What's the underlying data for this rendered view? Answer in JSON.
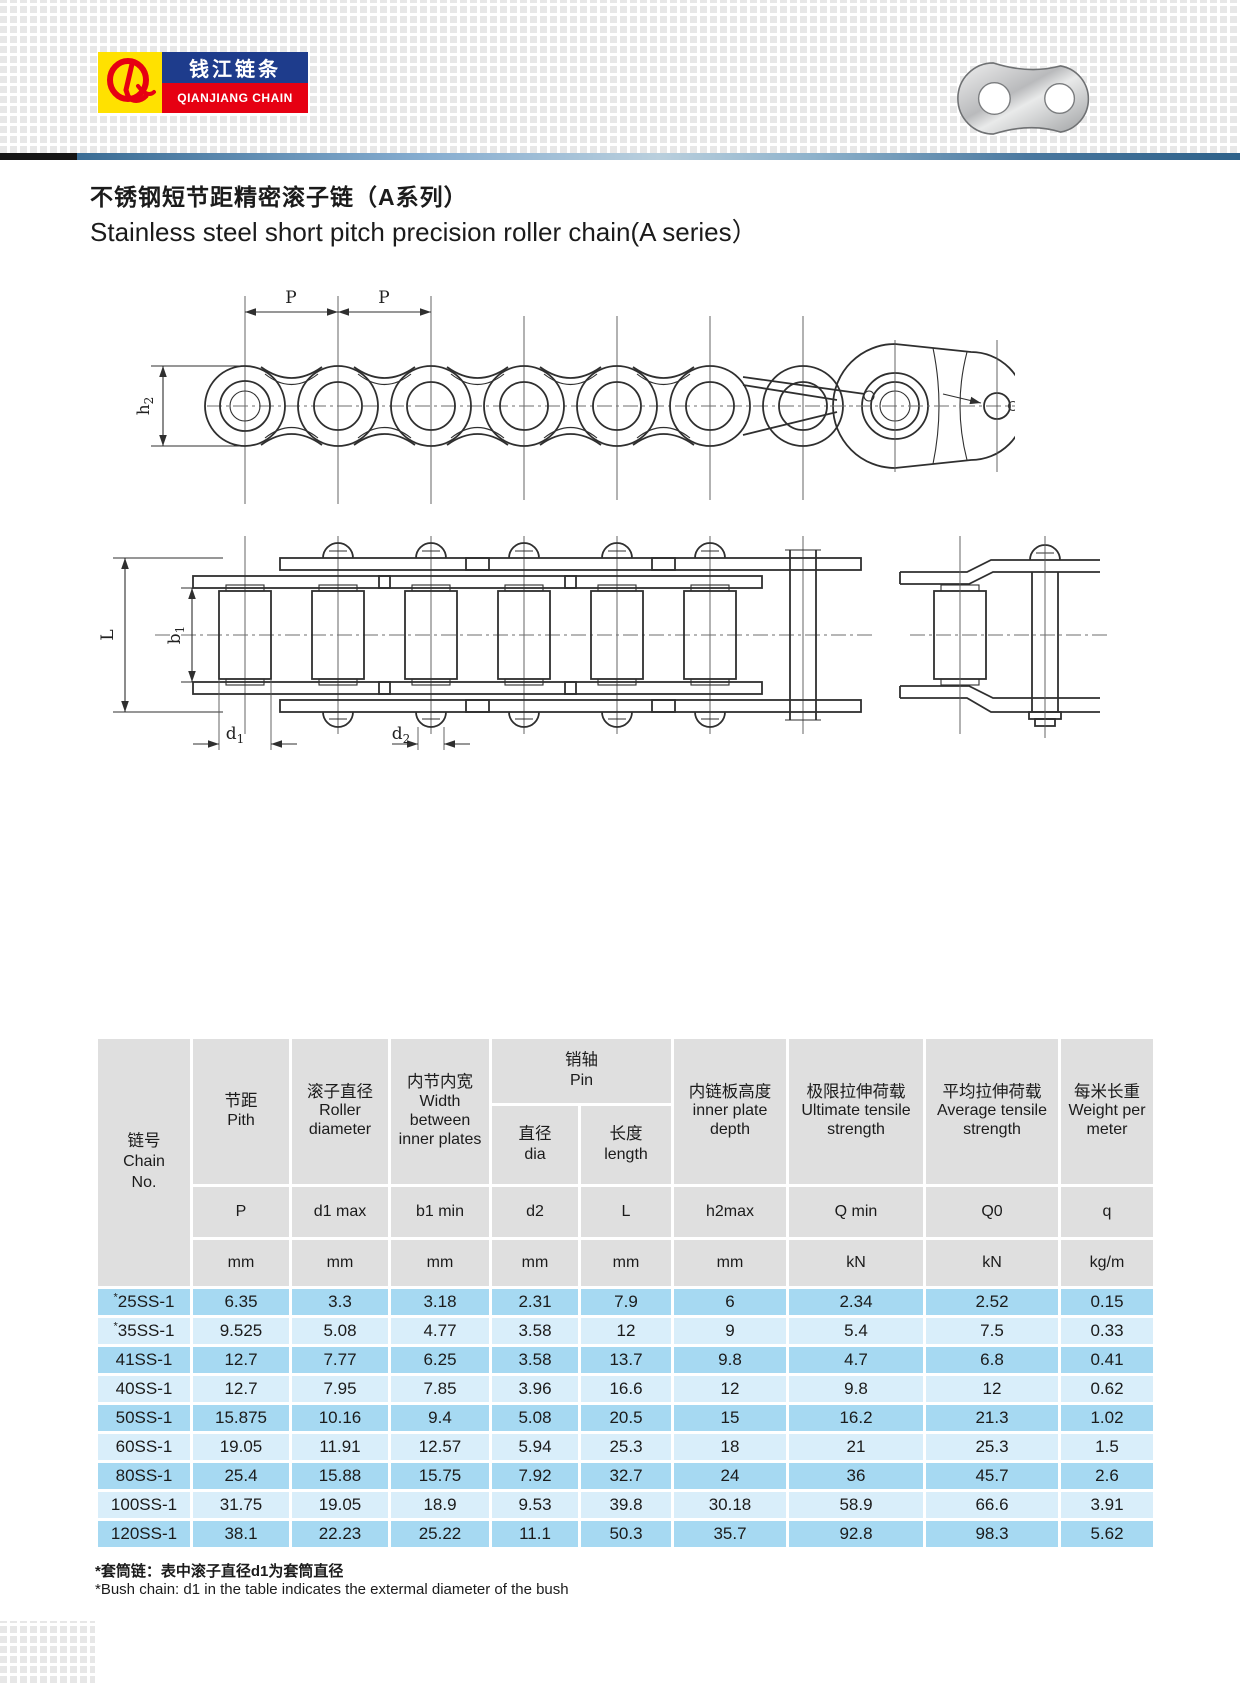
{
  "header": {
    "logo": {
      "monogram": "Q",
      "name_cn": "钱江链条",
      "name_en": "QIANJIANG CHAIN"
    }
  },
  "title": {
    "cn": "不锈钢短节距精密滚子链（A系列）",
    "en": "Stainless steel short pitch precision roller chain(A series）"
  },
  "drawings": {
    "pitch_label": "P",
    "h2": {
      "m": "h",
      "s": "2"
    },
    "L": "L",
    "b1": {
      "m": "b",
      "s": "1"
    },
    "d1": {
      "m": "d",
      "s": "1"
    },
    "d2": {
      "m": "d",
      "s": "2"
    }
  },
  "table": {
    "star_mark": "*",
    "chain_col": {
      "cn": "链号",
      "en_l1": "Chain",
      "en_l2": "No."
    },
    "pin_group": {
      "cn": "销轴",
      "en": "Pin"
    },
    "cols": [
      {
        "cn": "节距",
        "en": "Pith",
        "sym": "P",
        "unit": "mm"
      },
      {
        "cn": "滚子直径",
        "en": "Roller diameter",
        "sym": "d1 max",
        "unit": "mm"
      },
      {
        "cn": "内节内宽",
        "en": "Width between inner plates",
        "sym": "b1 min",
        "unit": "mm"
      },
      {
        "cn": "直径",
        "en": "dia",
        "sym": "d2",
        "unit": "mm"
      },
      {
        "cn": "长度",
        "en": "length",
        "sym": "L",
        "unit": "mm"
      },
      {
        "cn": "内链板高度",
        "en": "inner plate depth",
        "sym": "h2max",
        "unit": "mm"
      },
      {
        "cn": "极限拉伸荷载",
        "en": "Ultimate tensile strength",
        "sym": "Q min",
        "unit": "kN"
      },
      {
        "cn": "平均拉伸荷载",
        "en": "Average tensile strength",
        "sym": "Q0",
        "unit": "kN"
      },
      {
        "cn": "每米长重",
        "en": "Weight per meter",
        "sym": "q",
        "unit": "kg/m"
      }
    ],
    "rows": [
      {
        "chain": "25SS-1",
        "star": true,
        "values": [
          "6.35",
          "3.3",
          "3.18",
          "2.31",
          "7.9",
          "6",
          "2.34",
          "2.52",
          "0.15"
        ]
      },
      {
        "chain": "35SS-1",
        "star": true,
        "values": [
          "9.525",
          "5.08",
          "4.77",
          "3.58",
          "12",
          "9",
          "5.4",
          "7.5",
          "0.33"
        ]
      },
      {
        "chain": "41SS-1",
        "star": false,
        "values": [
          "12.7",
          "7.77",
          "6.25",
          "3.58",
          "13.7",
          "9.8",
          "4.7",
          "6.8",
          "0.41"
        ]
      },
      {
        "chain": "40SS-1",
        "star": false,
        "values": [
          "12.7",
          "7.95",
          "7.85",
          "3.96",
          "16.6",
          "12",
          "9.8",
          "12",
          "0.62"
        ]
      },
      {
        "chain": "50SS-1",
        "star": false,
        "values": [
          "15.875",
          "10.16",
          "9.4",
          "5.08",
          "20.5",
          "15",
          "16.2",
          "21.3",
          "1.02"
        ]
      },
      {
        "chain": "60SS-1",
        "star": false,
        "values": [
          "19.05",
          "11.91",
          "12.57",
          "5.94",
          "25.3",
          "18",
          "21",
          "25.3",
          "1.5"
        ]
      },
      {
        "chain": "80SS-1",
        "star": false,
        "values": [
          "25.4",
          "15.88",
          "15.75",
          "7.92",
          "32.7",
          "24",
          "36",
          "45.7",
          "2.6"
        ]
      },
      {
        "chain": "100SS-1",
        "star": false,
        "values": [
          "31.75",
          "19.05",
          "18.9",
          "9.53",
          "39.8",
          "30.18",
          "58.9",
          "66.6",
          "3.91"
        ]
      },
      {
        "chain": "120SS-1",
        "star": false,
        "values": [
          "38.1",
          "22.23",
          "25.22",
          "11.1",
          "50.3",
          "35.7",
          "92.8",
          "98.3",
          "5.62"
        ]
      }
    ]
  },
  "footnotes": {
    "cn": "*套筒链：表中滚子直径d1为套筒直径",
    "en": "*Bush chain: d1 in the table indicates the extermal diameter of the bush"
  },
  "colors": {
    "header_gray": "#dfdfdf",
    "row_dark": "#a6d9f2",
    "row_light": "#d9eefa",
    "brand_yellow": "#ffe100",
    "brand_blue": "#1e3c8c",
    "brand_red": "#e60012",
    "bar_dark": "#2e6189"
  }
}
